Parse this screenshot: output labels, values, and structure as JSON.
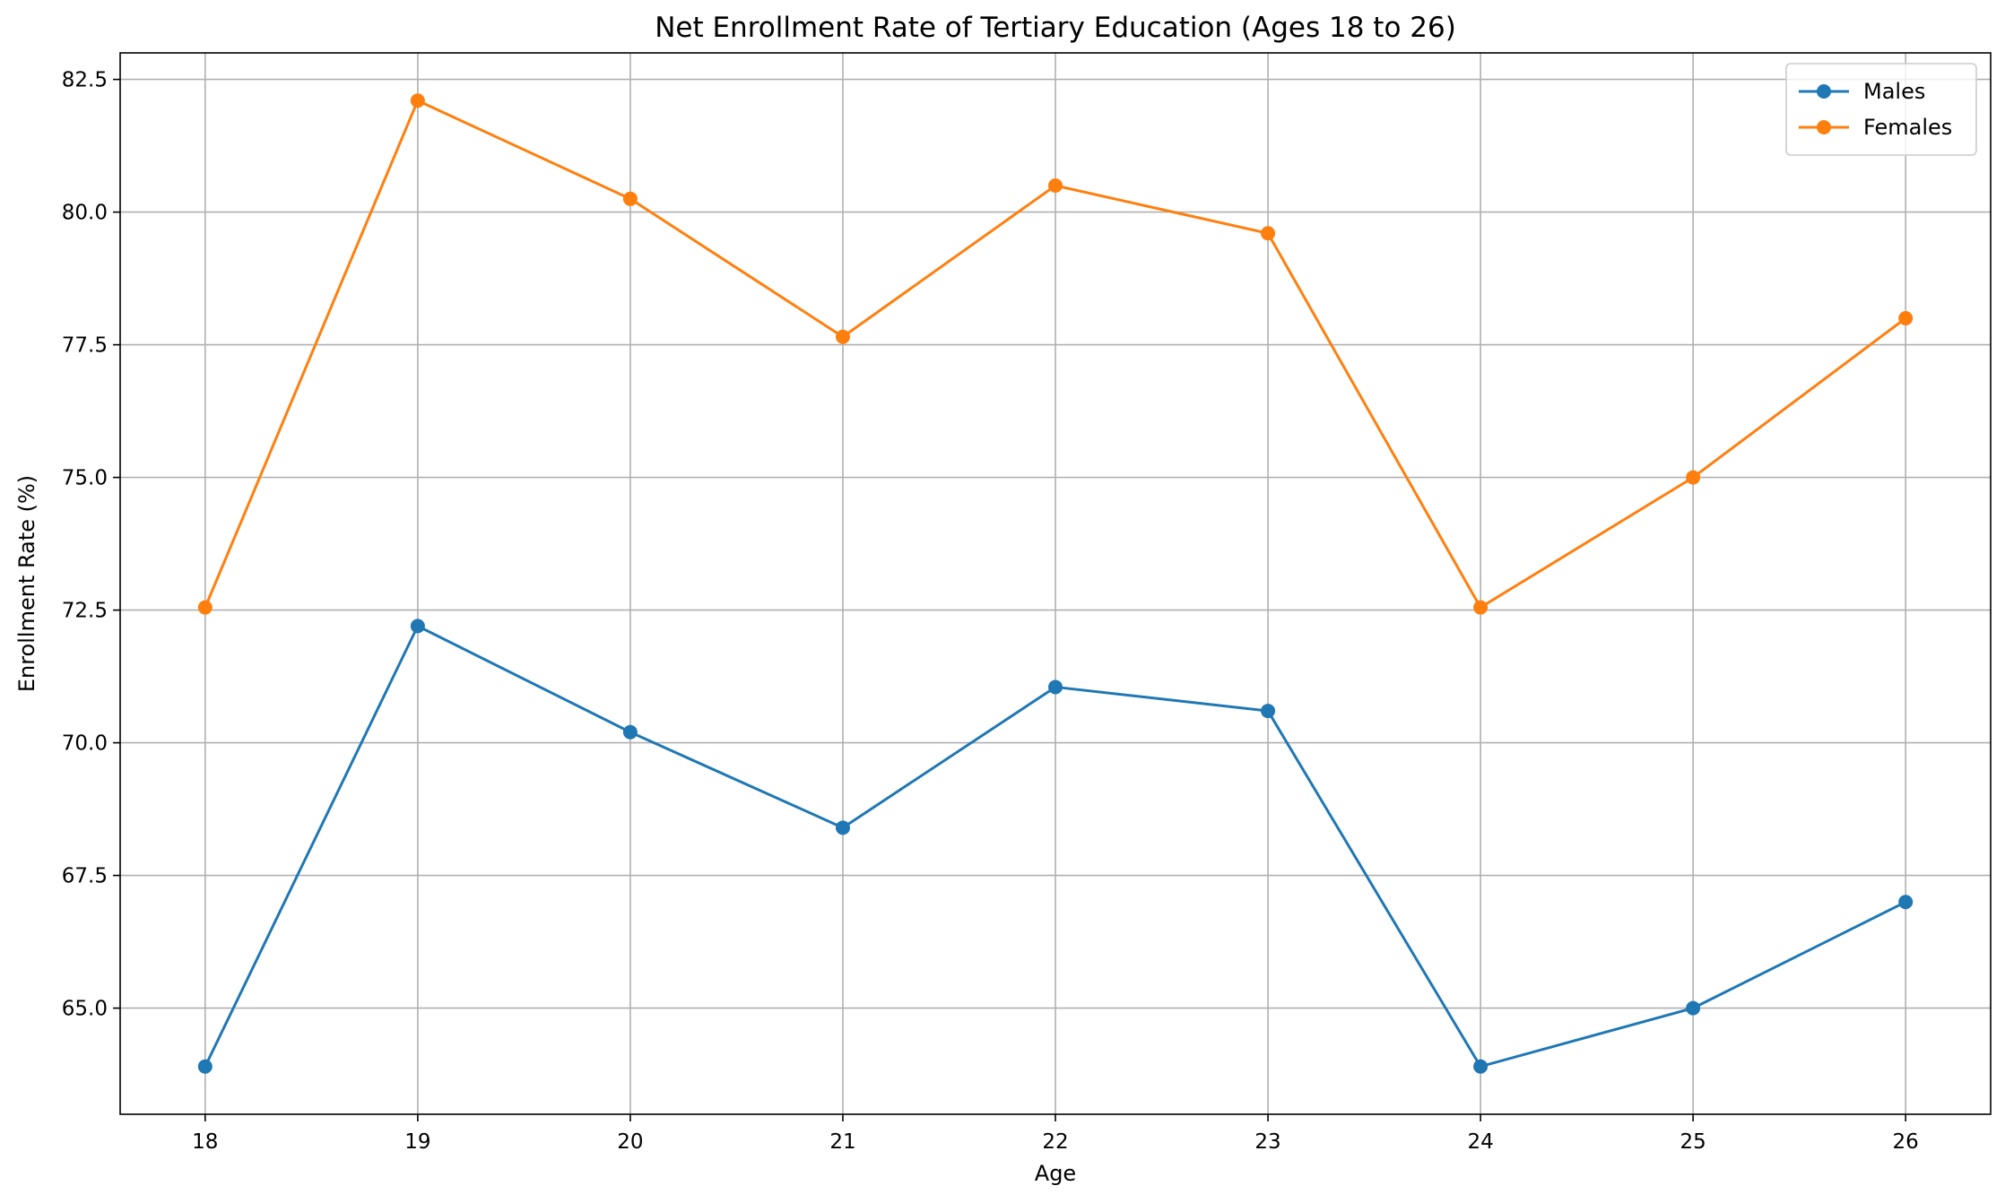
{
  "chart_data": {
    "type": "line",
    "title": "Net Enrollment Rate of Tertiary Education (Ages 18 to 26)",
    "xlabel": "Age",
    "ylabel": "Enrollment Rate (%)",
    "x": [
      18,
      19,
      20,
      21,
      22,
      23,
      24,
      25,
      26
    ],
    "xlim": [
      17.6,
      26.4
    ],
    "ylim": [
      63.0,
      83.0
    ],
    "xticks": [
      18,
      19,
      20,
      21,
      22,
      23,
      24,
      25,
      26
    ],
    "yticks": [
      65.0,
      67.5,
      70.0,
      72.5,
      75.0,
      77.5,
      80.0,
      82.5
    ],
    "ytick_labels": [
      "65.0",
      "67.5",
      "70.0",
      "72.5",
      "75.0",
      "77.5",
      "80.0",
      "82.5"
    ],
    "grid": true,
    "legend_position": "top-right",
    "series": [
      {
        "name": "Males",
        "color": "#1f77b4",
        "marker": "circle",
        "values": [
          63.9,
          72.2,
          70.2,
          68.4,
          71.05,
          70.6,
          63.9,
          65.0,
          67.0
        ]
      },
      {
        "name": "Females",
        "color": "#ff7f0e",
        "marker": "circle",
        "values": [
          72.55,
          82.1,
          80.25,
          77.65,
          80.5,
          79.6,
          72.55,
          75.0,
          78.0
        ]
      }
    ]
  }
}
